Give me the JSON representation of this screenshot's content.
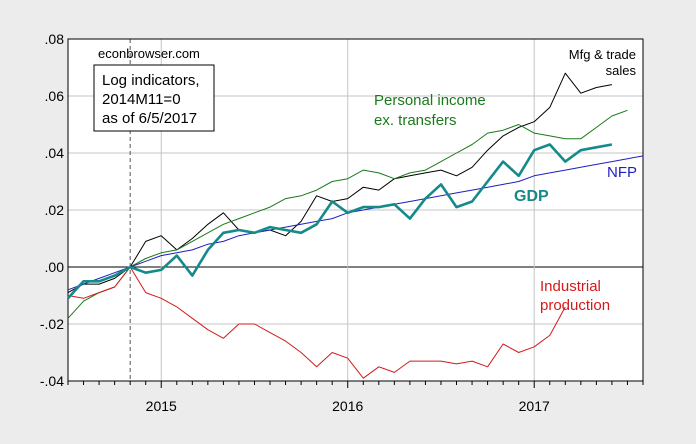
{
  "chart_data": {
    "type": "line",
    "title": "",
    "xlabel": "",
    "ylabel": "",
    "source_label": "econbrowser.com",
    "info_box": [
      "Log indicators,",
      "2014M11=0",
      "as of 6/5/2017"
    ],
    "ylim": [
      -0.04,
      0.08
    ],
    "y_ticks": [
      0.08,
      0.06,
      0.04,
      0.02,
      0.0,
      -0.02,
      -0.04
    ],
    "y_tick_labels": [
      ".08",
      ".06",
      ".04",
      ".02",
      ".00",
      "-.02",
      "-.04"
    ],
    "x_range_months": [
      "2014M07",
      "2017M05"
    ],
    "x_year_labels": [
      {
        "label": "2015",
        "month_index": 6
      },
      {
        "label": "2016",
        "month_index": 18
      },
      {
        "label": "2017",
        "month_index": 30
      }
    ],
    "reference_line_month_index": 4,
    "grid": true,
    "series": [
      {
        "name": "Mfg & trade sales",
        "label_lines": [
          "Mfg & trade",
          "sales"
        ],
        "color": "#000000",
        "width": 1,
        "start_month_index": 0,
        "values": [
          -0.009,
          -0.006,
          -0.006,
          -0.004,
          0.0,
          0.009,
          0.011,
          0.006,
          0.01,
          0.015,
          0.019,
          0.013,
          0.012,
          0.013,
          0.011,
          0.016,
          0.025,
          0.023,
          0.024,
          0.028,
          0.027,
          0.031,
          0.032,
          0.033,
          0.034,
          0.032,
          0.035,
          0.041,
          0.046,
          0.049,
          0.051,
          0.056,
          0.068,
          0.061,
          0.063,
          0.064
        ]
      },
      {
        "name": "Personal income ex. transfers",
        "label_lines": [
          "Personal income",
          "ex. transfers"
        ],
        "color": "#1a7a1a",
        "width": 1,
        "start_month_index": 0,
        "values": [
          -0.018,
          -0.012,
          -0.009,
          -0.007,
          0.0,
          0.003,
          0.005,
          0.006,
          0.009,
          0.012,
          0.015,
          0.017,
          0.019,
          0.021,
          0.024,
          0.025,
          0.027,
          0.03,
          0.031,
          0.034,
          0.033,
          0.031,
          0.033,
          0.034,
          0.037,
          0.04,
          0.043,
          0.047,
          0.048,
          0.05,
          0.047,
          0.046,
          0.045,
          0.045,
          0.049,
          0.053,
          0.055
        ]
      },
      {
        "name": "NFP",
        "label_lines": [
          "NFP"
        ],
        "color": "#1f1fbf",
        "width": 1,
        "start_month_index": 0,
        "values": [
          -0.008,
          -0.006,
          -0.004,
          -0.002,
          0.0,
          0.002,
          0.004,
          0.005,
          0.006,
          0.008,
          0.009,
          0.011,
          0.012,
          0.013,
          0.014,
          0.015,
          0.016,
          0.017,
          0.019,
          0.02,
          0.021,
          0.022,
          0.023,
          0.024,
          0.025,
          0.026,
          0.027,
          0.028,
          0.029,
          0.03,
          0.032,
          0.033,
          0.034,
          0.035,
          0.036,
          0.037,
          0.038,
          0.039
        ]
      },
      {
        "name": "GDP",
        "label_lines": [
          "GDP"
        ],
        "color": "#148a8a",
        "width": 2.6,
        "start_month_index": 0,
        "values": [
          -0.011,
          -0.005,
          -0.005,
          -0.003,
          0.0,
          -0.002,
          -0.001,
          0.004,
          -0.003,
          0.006,
          0.012,
          0.013,
          0.012,
          0.014,
          0.013,
          0.012,
          0.015,
          0.023,
          0.019,
          0.021,
          0.021,
          0.022,
          0.017,
          0.024,
          0.029,
          0.021,
          0.023,
          0.03,
          0.037,
          0.032,
          0.041,
          0.043,
          0.037,
          0.041,
          0.042,
          0.043
        ]
      },
      {
        "name": "Industrial production",
        "label_lines": [
          "Industrial",
          "production"
        ],
        "color": "#d41a1a",
        "width": 1,
        "start_month_index": 0,
        "values": [
          -0.01,
          -0.011,
          -0.009,
          -0.007,
          0.0,
          -0.009,
          -0.011,
          -0.014,
          -0.018,
          -0.022,
          -0.025,
          -0.02,
          -0.02,
          -0.023,
          -0.026,
          -0.03,
          -0.035,
          -0.03,
          -0.032,
          -0.039,
          -0.035,
          -0.037,
          -0.033,
          -0.033,
          -0.033,
          -0.034,
          -0.033,
          -0.035,
          -0.027,
          -0.03,
          -0.028,
          -0.024,
          -0.014
        ]
      }
    ]
  }
}
